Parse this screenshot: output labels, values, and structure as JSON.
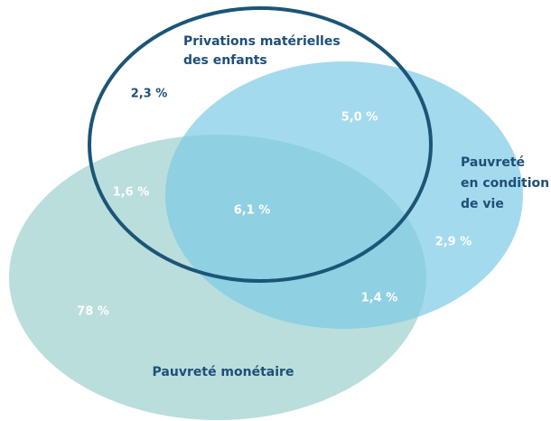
{
  "sets": [
    {
      "label_lines": [
        "Privations matérielles",
        "des enfants"
      ]
    },
    {
      "label_lines": [
        "Pauvreté",
        "en condition",
        "de vie"
      ]
    },
    {
      "label_lines": [
        "Pauvreté monétaire"
      ]
    }
  ],
  "regions": [
    {
      "label": "2,3 %"
    },
    {
      "label": "5,0 %"
    },
    {
      "label": "1,6 %"
    },
    {
      "label": "6,1 %"
    },
    {
      "label": "2,9 %"
    },
    {
      "label": "1,4 %"
    },
    {
      "label": "78 %"
    }
  ]
}
